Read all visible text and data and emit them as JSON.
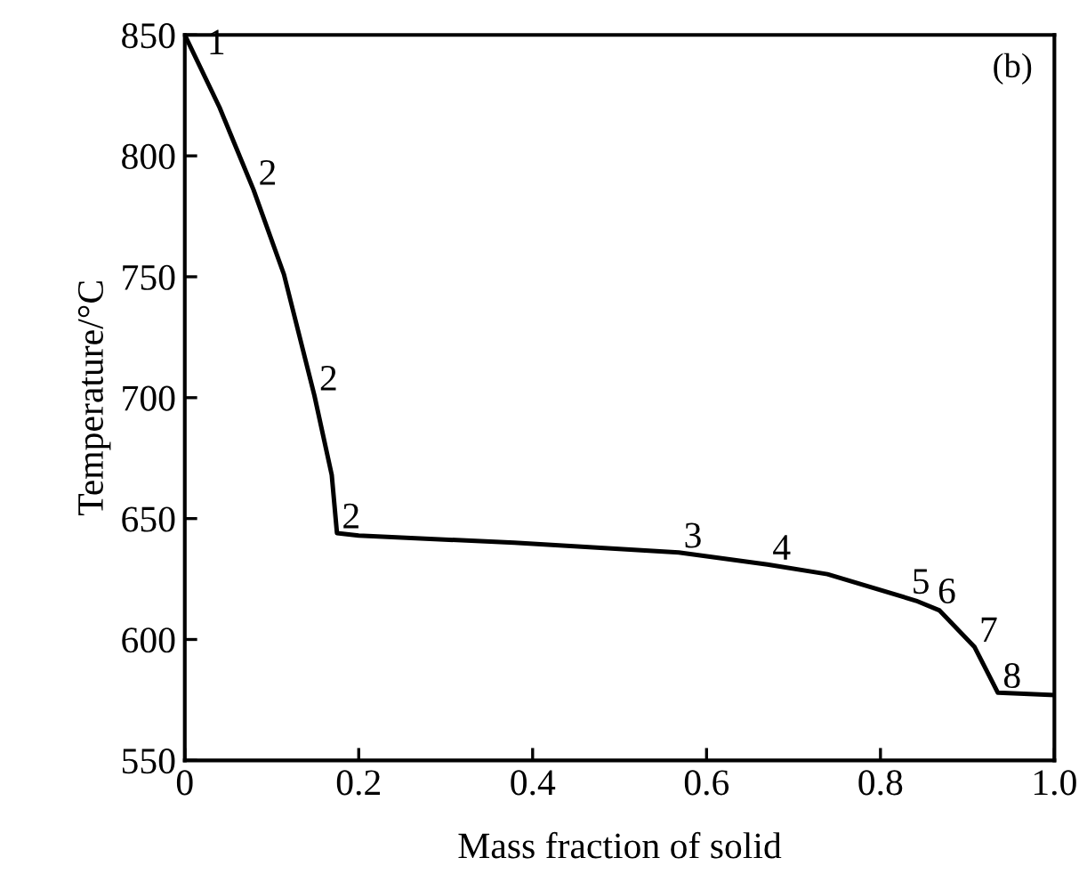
{
  "chart_data": {
    "type": "line",
    "xlabel": "Mass fraction of solid",
    "ylabel": "Temperature/°C",
    "x": [
      0,
      0.04,
      0.079,
      0.114,
      0.149,
      0.169,
      0.175,
      0.2,
      0.379,
      0.568,
      0.67,
      0.739,
      0.841,
      0.868,
      0.908,
      0.935,
      1.0
    ],
    "series": [
      {
        "color": "#000000",
        "values": [
          850,
          820,
          786,
          751,
          701,
          668,
          644,
          643,
          640,
          636,
          631,
          627,
          616,
          612,
          597,
          578,
          577
        ]
      }
    ],
    "xlim": [
      0,
      1.0
    ],
    "ylim": [
      550,
      850
    ],
    "xticks": [
      0,
      0.2,
      0.4,
      0.6,
      0.8,
      {
        "value": 1,
        "label": "1.0"
      }
    ],
    "yticks": [
      550,
      600,
      650,
      700,
      750,
      800,
      850
    ],
    "grid": false,
    "marker": "none",
    "line_style": "solid",
    "annotations": [
      "(b)",
      {
        "text": "1",
        "x": 0.02,
        "y": 840
      },
      {
        "text": "2",
        "x": 0.079,
        "y": 786
      },
      {
        "text": "2",
        "x": 0.149,
        "y": 701
      },
      {
        "text": "2",
        "x": 0.175,
        "y": 644
      },
      {
        "text": "3",
        "x": 0.568,
        "y": 636
      },
      {
        "text": "4",
        "x": 0.67,
        "y": 631
      },
      {
        "text": "5",
        "x": 0.83,
        "y": 617
      },
      {
        "text": "6",
        "x": 0.86,
        "y": 613
      },
      {
        "text": "7",
        "x": 0.908,
        "y": 597
      },
      {
        "text": "8",
        "x": 0.935,
        "y": 578
      }
    ]
  }
}
